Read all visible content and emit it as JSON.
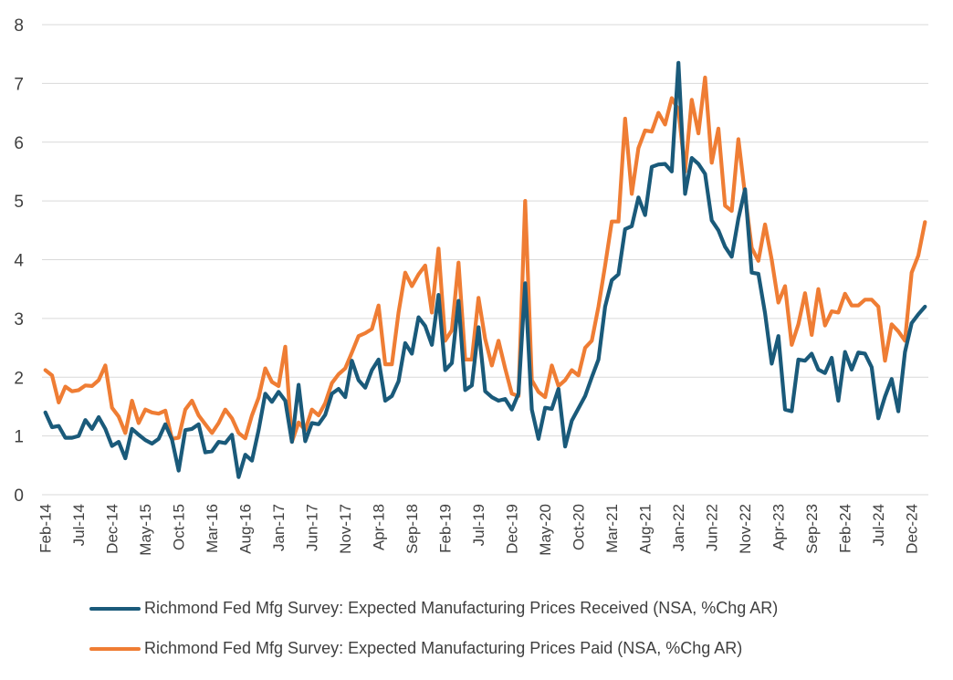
{
  "chart_data": {
    "type": "line",
    "title": "",
    "xlabel": "",
    "ylabel": "",
    "ylim": [
      0,
      8
    ],
    "yticks": [
      0,
      1,
      2,
      3,
      4,
      5,
      6,
      7,
      8
    ],
    "xtick_labels": [
      "Feb-14",
      "Jul-14",
      "Dec-14",
      "May-15",
      "Oct-15",
      "Mar-16",
      "Aug-16",
      "Jan-17",
      "Jun-17",
      "Nov-17",
      "Apr-18",
      "Sep-18",
      "Feb-19",
      "Jul-19",
      "Dec-19",
      "May-20",
      "Oct-20",
      "Mar-21",
      "Aug-21",
      "Jan-22",
      "Jun-22",
      "Nov-22",
      "Apr-23",
      "Sep-23",
      "Feb-24",
      "Jul-24",
      "Dec-24"
    ],
    "x_start": "Feb-14",
    "x_frequency": "monthly",
    "grid": true,
    "legend_position": "bottom",
    "series": [
      {
        "name": "Richmond Fed Mfg Survey: Expected Manufacturing Prices Received (NSA, %Chg AR)",
        "color": "#1a5a7a",
        "values": [
          1.4,
          1.15,
          1.17,
          0.97,
          0.97,
          1.0,
          1.27,
          1.12,
          1.32,
          1.12,
          0.83,
          0.9,
          0.62,
          1.12,
          1.02,
          0.93,
          0.87,
          0.95,
          1.2,
          0.94,
          0.41,
          1.1,
          1.12,
          1.2,
          0.72,
          0.74,
          0.9,
          0.88,
          1.02,
          0.3,
          0.68,
          0.58,
          1.1,
          1.72,
          1.58,
          1.75,
          1.6,
          0.9,
          1.87,
          0.91,
          1.22,
          1.2,
          1.36,
          1.72,
          1.8,
          1.66,
          2.28,
          1.95,
          1.82,
          2.12,
          2.3,
          1.6,
          1.68,
          1.93,
          2.58,
          2.4,
          3.02,
          2.87,
          2.55,
          3.4,
          2.12,
          2.24,
          3.3,
          1.78,
          1.86,
          2.85,
          1.76,
          1.66,
          1.6,
          1.63,
          1.45,
          1.72,
          3.6,
          1.45,
          0.95,
          1.48,
          1.46,
          1.8,
          0.82,
          1.26,
          1.47,
          1.68,
          2.0,
          2.3,
          3.2,
          3.65,
          3.75,
          4.52,
          4.57,
          5.06,
          4.76,
          5.58,
          5.62,
          5.63,
          5.5,
          7.35,
          5.12,
          5.73,
          5.63,
          5.46,
          4.67,
          4.5,
          4.22,
          4.05,
          4.7,
          5.2,
          3.78,
          3.76,
          3.09,
          2.23,
          2.7,
          1.45,
          1.42,
          2.3,
          2.28,
          2.4,
          2.13,
          2.07,
          2.33,
          1.6,
          2.43,
          2.13,
          2.42,
          2.4,
          2.17,
          1.3,
          1.67,
          1.97,
          1.42,
          2.43,
          2.92,
          3.07,
          3.2
        ]
      },
      {
        "name": "Richmond Fed Mfg Survey: Expected Manufacturing Prices Paid (NSA, %Chg AR)",
        "color": "#ef7d34",
        "values": [
          2.12,
          2.03,
          1.57,
          1.84,
          1.76,
          1.78,
          1.86,
          1.85,
          1.95,
          2.2,
          1.48,
          1.33,
          1.05,
          1.6,
          1.22,
          1.45,
          1.4,
          1.38,
          1.43,
          0.95,
          0.97,
          1.45,
          1.6,
          1.35,
          1.2,
          1.05,
          1.22,
          1.45,
          1.3,
          1.05,
          0.96,
          1.35,
          1.65,
          2.15,
          1.92,
          1.85,
          2.52,
          0.9,
          1.23,
          1.1,
          1.45,
          1.35,
          1.56,
          1.9,
          2.05,
          2.15,
          2.42,
          2.7,
          2.75,
          2.82,
          3.22,
          2.22,
          2.22,
          3.1,
          3.78,
          3.55,
          3.75,
          3.9,
          3.1,
          4.19,
          2.62,
          2.8,
          3.95,
          2.3,
          2.3,
          3.35,
          2.65,
          2.2,
          2.62,
          2.15,
          1.72,
          1.68,
          5.0,
          1.95,
          1.75,
          1.66,
          2.2,
          1.85,
          1.95,
          2.12,
          2.03,
          2.5,
          2.62,
          3.2,
          3.9,
          4.65,
          4.65,
          6.4,
          5.12,
          5.9,
          6.2,
          6.18,
          6.5,
          6.3,
          6.75,
          6.55,
          5.5,
          6.72,
          6.15,
          7.1,
          5.65,
          6.23,
          4.92,
          4.83,
          6.05,
          5.1,
          4.2,
          3.98,
          4.6,
          4.0,
          3.27,
          3.55,
          2.55,
          2.9,
          3.43,
          2.72,
          3.5,
          2.88,
          3.12,
          3.1,
          3.42,
          3.22,
          3.22,
          3.32,
          3.32,
          3.2,
          2.28,
          2.9,
          2.78,
          2.62,
          3.78,
          4.07,
          4.64
        ]
      }
    ]
  }
}
